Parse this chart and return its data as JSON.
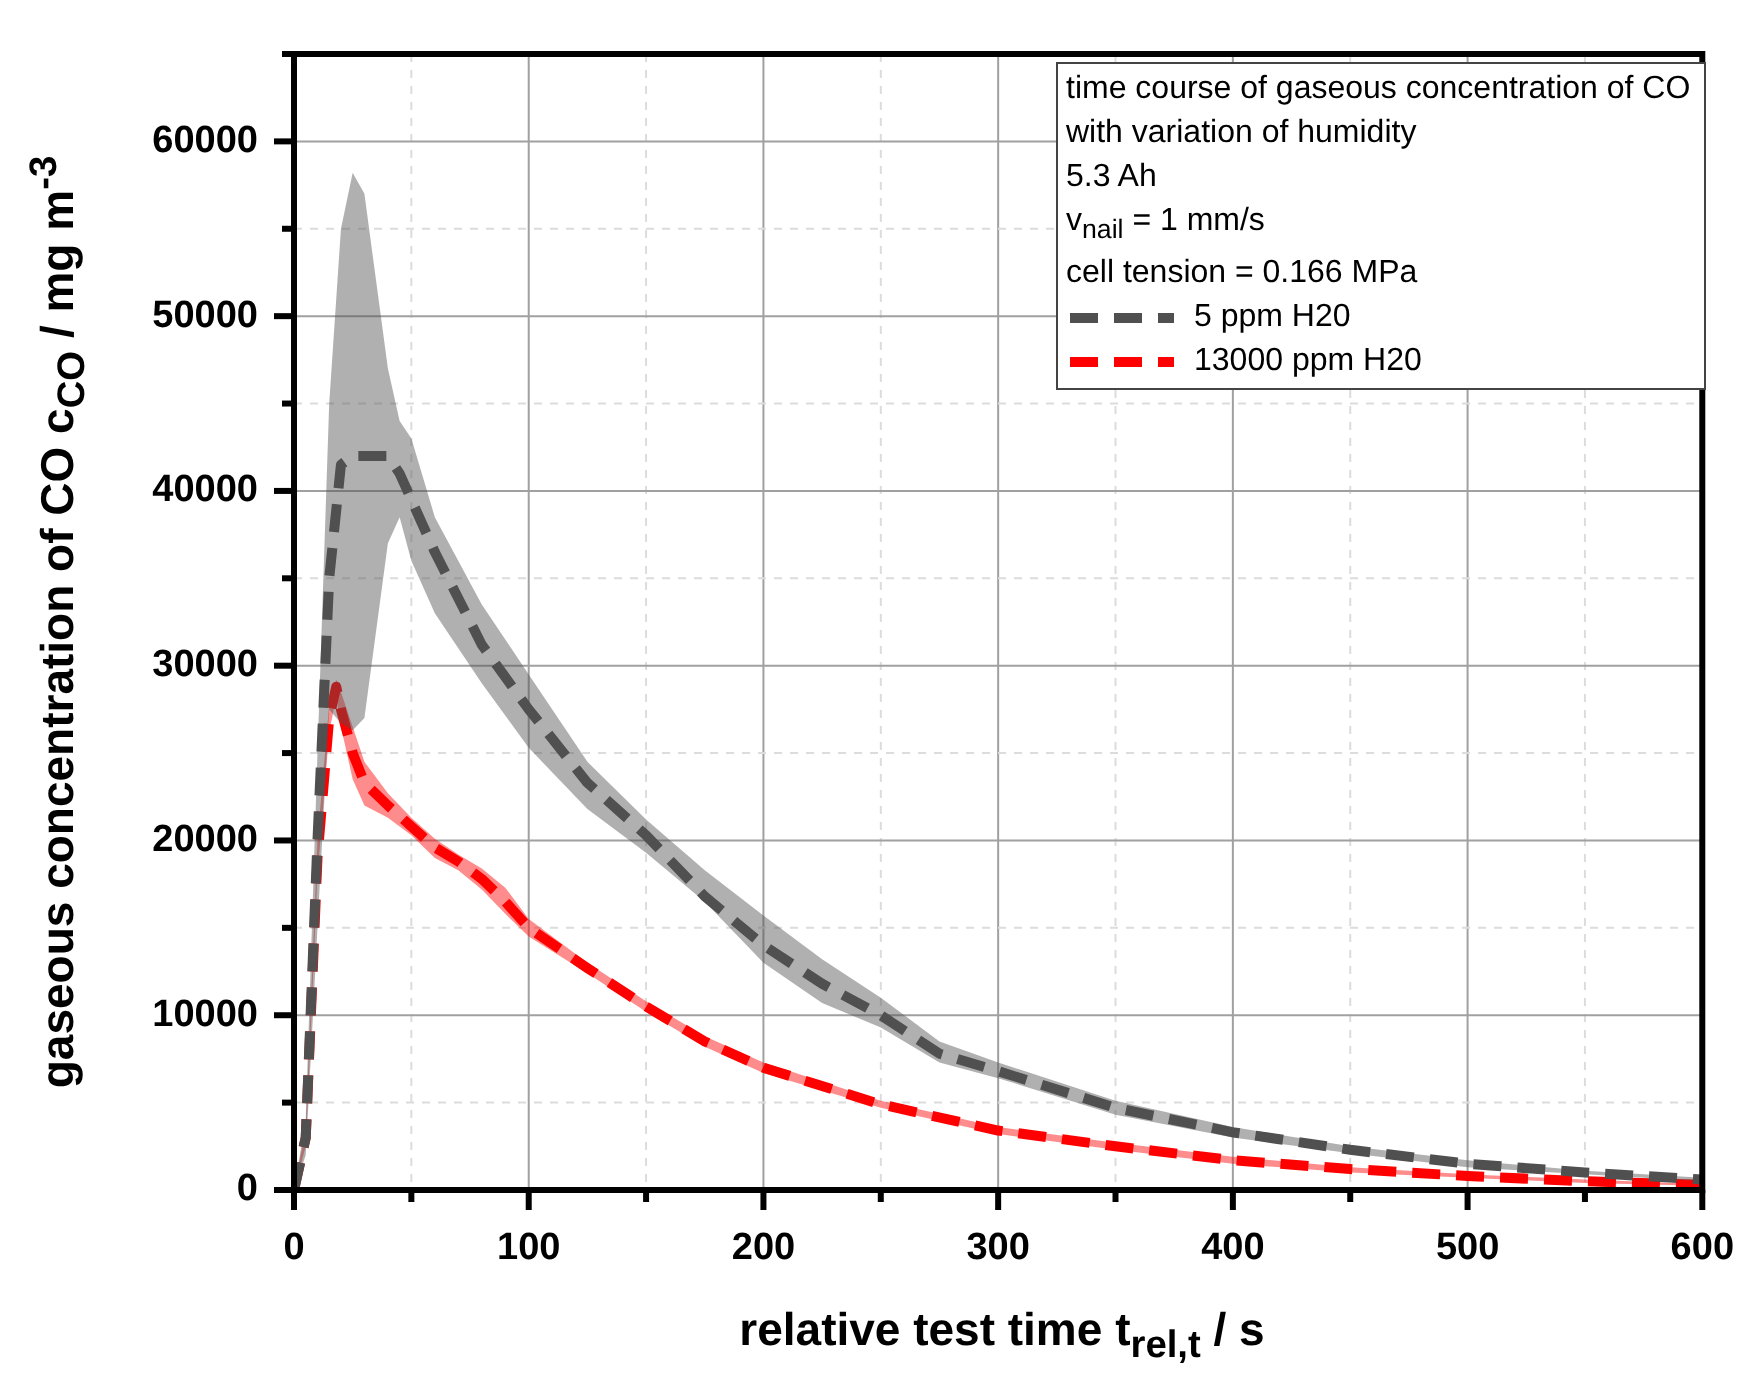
{
  "chart_data": {
    "type": "line",
    "xlabel": "relative test time t$_{rel,t}$ / s",
    "ylabel": "gaseous concentration of CO c$_{CO}$ / mg m$^{-3}$",
    "legend_title": "time course of gaseous concentration of CO with variation of humidity\n5.3 Ah\nv$_{nail}$ = 1 mm/s\ncell tension = 0.166 MPa",
    "xlim": [
      0,
      600
    ],
    "xticks": [
      0,
      {
        "value": 50,
        "label": null
      },
      100,
      {
        "value": 150,
        "label": null
      },
      200,
      {
        "value": 250,
        "label": null
      },
      300,
      {
        "value": 350,
        "label": null
      },
      400,
      {
        "value": 450,
        "label": null
      },
      500,
      {
        "value": 550,
        "label": null
      },
      600
    ],
    "ylim": [
      0,
      65000
    ],
    "yticks": [
      0,
      {
        "value": 5000,
        "label": null
      },
      10000,
      {
        "value": 15000,
        "label": null
      },
      20000,
      {
        "value": 25000,
        "label": null
      },
      30000,
      {
        "value": 35000,
        "label": null
      },
      40000,
      {
        "value": 45000,
        "label": null
      },
      50000,
      {
        "value": 55000,
        "label": null
      },
      60000,
      {
        "value": 65000,
        "label": null
      }
    ],
    "grid": true,
    "legend": "top right",
    "marker": "none",
    "line_style": "dashed",
    "series": [
      {
        "name": "5 ppm H20",
        "color": "#505050",
        "x": [
          0,
          5,
          10,
          15,
          20,
          25,
          30,
          40,
          45,
          50,
          60,
          80,
          100,
          125,
          150,
          175,
          200,
          225,
          250,
          275,
          300,
          350,
          400,
          450,
          500,
          550,
          600
        ],
        "values": [
          0,
          3000,
          20000,
          35000,
          41500,
          42000,
          42000,
          42000,
          41000,
          39500,
          36500,
          31200,
          27500,
          23300,
          20300,
          16800,
          14000,
          11800,
          10000,
          7800,
          6800,
          4700,
          3300,
          2300,
          1500,
          1000,
          600
        ],
        "upper": [
          0,
          4000,
          25000,
          45000,
          55000,
          58200,
          57000,
          47000,
          44000,
          43000,
          38500,
          33500,
          29500,
          24500,
          21200,
          18300,
          15700,
          13200,
          11000,
          8500,
          7300,
          5100,
          3600,
          2500,
          1700,
          1100,
          700
        ],
        "lower": [
          0,
          2000,
          15000,
          27500,
          26700,
          26300,
          27000,
          37000,
          38500,
          36000,
          33000,
          29000,
          25300,
          21800,
          19300,
          16500,
          13000,
          10700,
          9300,
          7300,
          6400,
          4300,
          3000,
          2100,
          1300,
          900,
          500
        ]
      },
      {
        "name": "13000 ppm H20",
        "color": "#ff0000",
        "x": [
          0,
          5,
          10,
          15,
          18,
          20,
          25,
          30,
          40,
          50,
          60,
          70,
          80,
          90,
          100,
          125,
          150,
          175,
          200,
          250,
          300,
          350,
          400,
          450,
          500,
          550,
          600
        ],
        "values": [
          0,
          3000,
          19000,
          27000,
          28800,
          27500,
          25000,
          23300,
          22000,
          20800,
          19600,
          18800,
          17800,
          16500,
          15000,
          12700,
          10500,
          8500,
          7000,
          4900,
          3400,
          2500,
          1700,
          1200,
          800,
          500,
          300
        ],
        "upper": [
          0,
          3500,
          20000,
          27800,
          29200,
          28500,
          26500,
          24500,
          22700,
          21300,
          20100,
          19200,
          18400,
          17300,
          15500,
          13000,
          10800,
          8800,
          7300,
          5100,
          3600,
          2700,
          1900,
          1300,
          900,
          600,
          350
        ],
        "lower": [
          0,
          2500,
          18000,
          26200,
          28200,
          26500,
          23500,
          22000,
          21300,
          20300,
          19000,
          18300,
          17200,
          15800,
          14500,
          12400,
          10200,
          8200,
          6700,
          4700,
          3200,
          2300,
          1500,
          1000,
          700,
          400,
          250
        ]
      }
    ]
  }
}
